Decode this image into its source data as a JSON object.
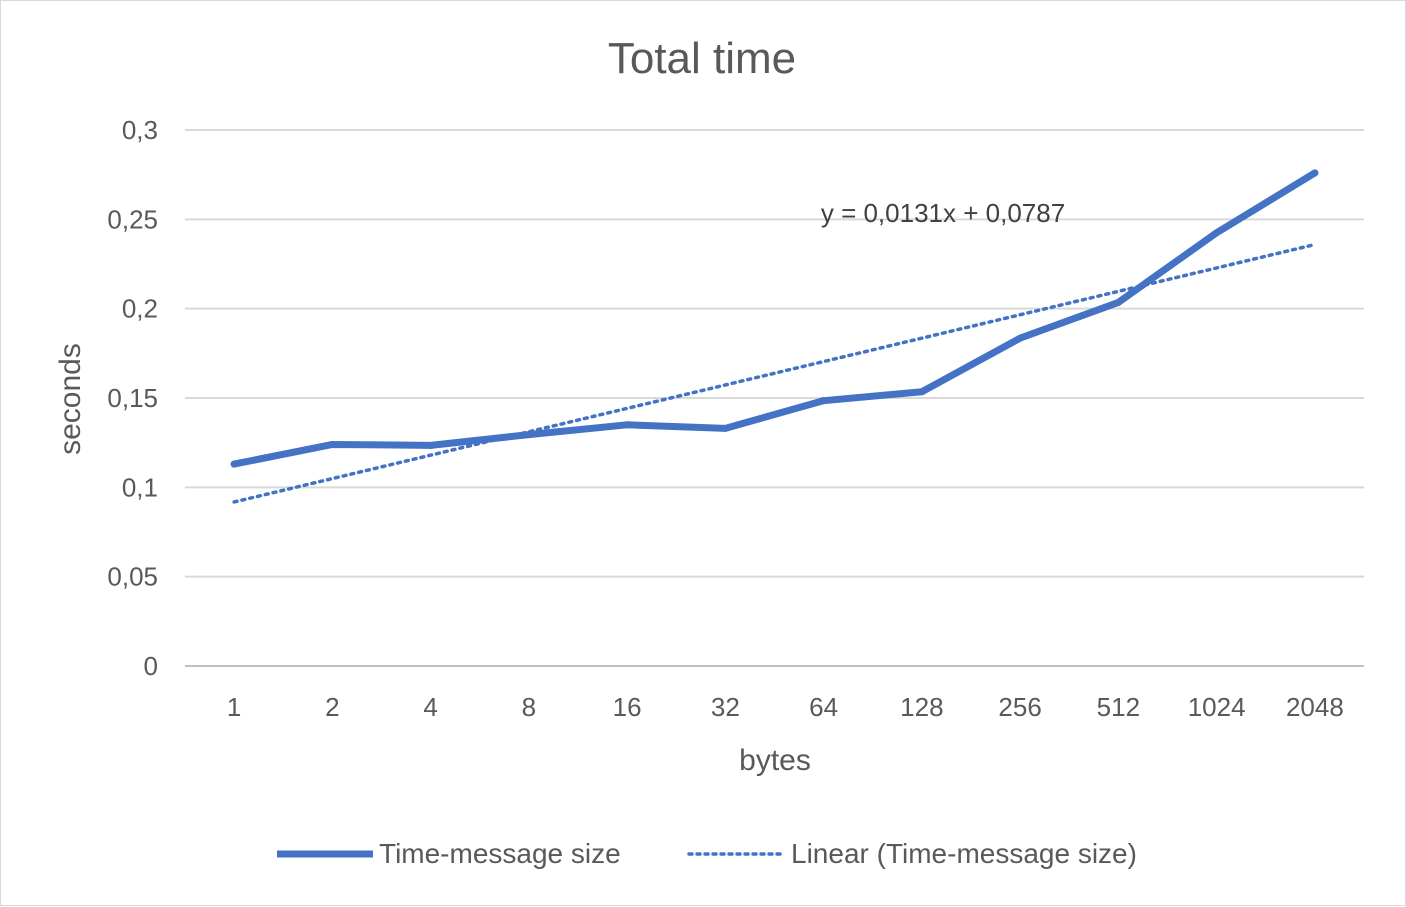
{
  "chart_data": {
    "type": "line",
    "title": "Total time",
    "xlabel": "bytes",
    "ylabel": "seconds",
    "categories": [
      "1",
      "2",
      "4",
      "8",
      "16",
      "32",
      "64",
      "128",
      "256",
      "512",
      "1024",
      "2048"
    ],
    "series": [
      {
        "name": "Time-message size",
        "values": [
          0.113,
          0.124,
          0.1235,
          0.1295,
          0.135,
          0.133,
          0.1485,
          0.1535,
          0.1835,
          0.2035,
          0.2425,
          0.276
        ],
        "color": "#4472C4",
        "style": "solid"
      }
    ],
    "trendline": {
      "name": "Linear (Time-message size)",
      "type": "linear",
      "slope": 0.0131,
      "intercept": 0.0787,
      "equation": "y = 0,0131x + 0,0787",
      "color": "#4472C4",
      "style": "dotted"
    },
    "ylim": [
      0,
      0.3
    ],
    "yticks": [
      "0",
      "0,05",
      "0,1",
      "0,15",
      "0,2",
      "0,25",
      "0,3"
    ],
    "ytick_values": [
      0,
      0.05,
      0.1,
      0.15,
      0.2,
      0.25,
      0.3
    ],
    "grid": true,
    "legend": "bottom"
  }
}
